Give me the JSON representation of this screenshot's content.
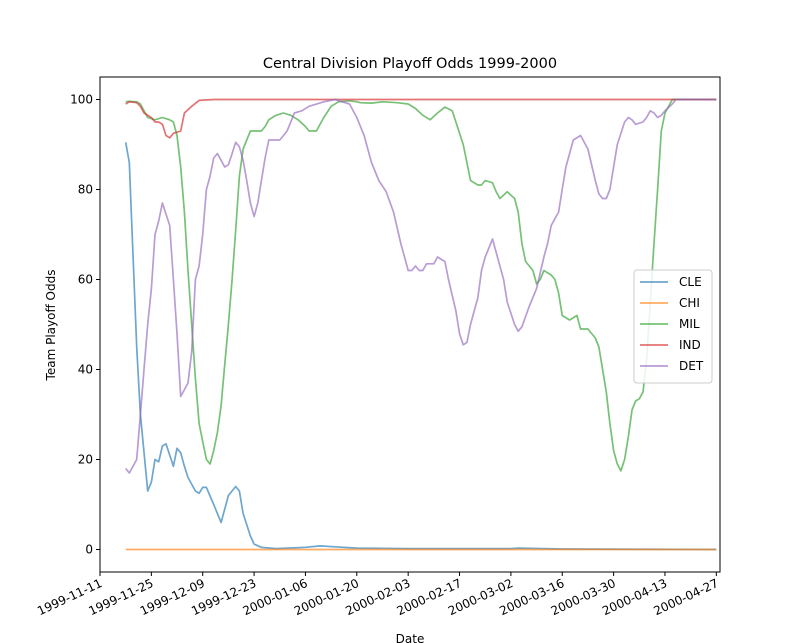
{
  "chart_data": {
    "type": "line",
    "title": "Central Division Playoff Odds 1999-2000",
    "xlabel": "Date",
    "ylabel": "Team Playoff Odds",
    "xlim": [
      "1999-11-11",
      "2000-04-28"
    ],
    "ylim": [
      -5,
      105
    ],
    "x_ticks": [
      "1999-11-11",
      "1999-11-25",
      "1999-12-09",
      "1999-12-23",
      "2000-01-06",
      "2000-01-20",
      "2000-02-03",
      "2000-02-17",
      "2000-03-02",
      "2000-03-16",
      "2000-03-30",
      "2000-04-13",
      "2000-04-27"
    ],
    "y_ticks": [
      0,
      20,
      40,
      60,
      80,
      100
    ],
    "grid": false,
    "legend_position": "center-right",
    "series": [
      {
        "name": "CLE",
        "color": "#1f77b4",
        "points": [
          [
            "1999-11-18",
            90.5
          ],
          [
            "1999-11-19",
            86
          ],
          [
            "1999-11-21",
            45
          ],
          [
            "1999-11-22",
            30
          ],
          [
            "1999-11-24",
            13
          ],
          [
            "1999-11-25",
            15
          ],
          [
            "1999-11-26",
            20
          ],
          [
            "1999-11-27",
            19.5
          ],
          [
            "1999-11-28",
            23
          ],
          [
            "1999-11-29",
            23.5
          ],
          [
            "1999-12-01",
            18.5
          ],
          [
            "1999-12-02",
            22.5
          ],
          [
            "1999-12-03",
            21.5
          ],
          [
            "1999-12-04",
            18.5
          ],
          [
            "1999-12-05",
            16
          ],
          [
            "1999-12-07",
            13
          ],
          [
            "1999-12-08",
            12.5
          ],
          [
            "1999-12-09",
            13.8
          ],
          [
            "1999-12-10",
            13.8
          ],
          [
            "1999-12-12",
            10
          ],
          [
            "1999-12-14",
            6
          ],
          [
            "1999-12-16",
            12
          ],
          [
            "1999-12-18",
            14
          ],
          [
            "1999-12-19",
            13
          ],
          [
            "1999-12-20",
            8
          ],
          [
            "1999-12-22",
            3
          ],
          [
            "1999-12-23",
            1.2
          ],
          [
            "1999-12-25",
            0.5
          ],
          [
            "1999-12-29",
            0.2
          ],
          [
            "2000-01-06",
            0.5
          ],
          [
            "2000-01-10",
            0.8
          ],
          [
            "2000-01-14",
            0.6
          ],
          [
            "2000-01-20",
            0.3
          ],
          [
            "2000-02-03",
            0.2
          ],
          [
            "2000-03-02",
            0.2
          ],
          [
            "2000-03-04",
            0.3
          ],
          [
            "2000-03-16",
            0.1
          ],
          [
            "2000-04-27",
            0
          ]
        ]
      },
      {
        "name": "CHI",
        "color": "#ff7f0e",
        "points": [
          [
            "1999-11-18",
            0
          ],
          [
            "2000-04-27",
            0
          ]
        ]
      },
      {
        "name": "MIL",
        "color": "#2ca02c",
        "points": [
          [
            "1999-11-18",
            99.5
          ],
          [
            "1999-11-19",
            99.6
          ],
          [
            "1999-11-21",
            99.5
          ],
          [
            "1999-11-22",
            99
          ],
          [
            "1999-11-24",
            96
          ],
          [
            "1999-11-26",
            95.5
          ],
          [
            "1999-11-28",
            96
          ],
          [
            "1999-11-30",
            95.5
          ],
          [
            "1999-12-01",
            95
          ],
          [
            "1999-12-02",
            92
          ],
          [
            "1999-12-03",
            85
          ],
          [
            "1999-12-04",
            75
          ],
          [
            "1999-12-05",
            62
          ],
          [
            "1999-12-06",
            50
          ],
          [
            "1999-12-07",
            38
          ],
          [
            "1999-12-08",
            28
          ],
          [
            "1999-12-09",
            24
          ],
          [
            "1999-12-10",
            20
          ],
          [
            "1999-12-11",
            19
          ],
          [
            "1999-12-12",
            22
          ],
          [
            "1999-12-13",
            26
          ],
          [
            "1999-12-14",
            32
          ],
          [
            "1999-12-15",
            41
          ],
          [
            "1999-12-16",
            50
          ],
          [
            "1999-12-17",
            60
          ],
          [
            "1999-12-18",
            71
          ],
          [
            "1999-12-19",
            83
          ],
          [
            "1999-12-20",
            89
          ],
          [
            "1999-12-21",
            91
          ],
          [
            "1999-12-22",
            93
          ],
          [
            "1999-12-25",
            93
          ],
          [
            "1999-12-26",
            94
          ],
          [
            "1999-12-27",
            95.5
          ],
          [
            "1999-12-28",
            96
          ],
          [
            "1999-12-29",
            96.5
          ],
          [
            "1999-12-31",
            97
          ],
          [
            "2000-01-02",
            96.5
          ],
          [
            "2000-01-04",
            95.5
          ],
          [
            "2000-01-06",
            94
          ],
          [
            "2000-01-07",
            93
          ],
          [
            "2000-01-09",
            93
          ],
          [
            "2000-01-11",
            96
          ],
          [
            "2000-01-13",
            98.5
          ],
          [
            "2000-01-15",
            99.5
          ],
          [
            "2000-01-18",
            99.7
          ],
          [
            "2000-01-20",
            99.5
          ],
          [
            "2000-01-21",
            99.3
          ],
          [
            "2000-01-24",
            99.2
          ],
          [
            "2000-01-27",
            99.5
          ],
          [
            "2000-01-31",
            99.3
          ],
          [
            "2000-02-03",
            99
          ],
          [
            "2000-02-05",
            98
          ],
          [
            "2000-02-07",
            96.5
          ],
          [
            "2000-02-09",
            95.5
          ],
          [
            "2000-02-11",
            97
          ],
          [
            "2000-02-13",
            98.3
          ],
          [
            "2000-02-15",
            97.5
          ],
          [
            "2000-02-16",
            95
          ],
          [
            "2000-02-18",
            90
          ],
          [
            "2000-02-19",
            86
          ],
          [
            "2000-02-20",
            82
          ],
          [
            "2000-02-21",
            81.5
          ],
          [
            "2000-02-22",
            81
          ],
          [
            "2000-02-23",
            81
          ],
          [
            "2000-02-24",
            82
          ],
          [
            "2000-02-26",
            81.5
          ],
          [
            "2000-02-27",
            79.5
          ],
          [
            "2000-02-28",
            78
          ],
          [
            "2000-03-01",
            79.5
          ],
          [
            "2000-03-03",
            78
          ],
          [
            "2000-03-04",
            75
          ],
          [
            "2000-03-05",
            68
          ],
          [
            "2000-03-06",
            64
          ],
          [
            "2000-03-08",
            62
          ],
          [
            "2000-03-09",
            59
          ],
          [
            "2000-03-10",
            60
          ],
          [
            "2000-03-11",
            62
          ],
          [
            "2000-03-12",
            61.5
          ],
          [
            "2000-03-13",
            61
          ],
          [
            "2000-03-14",
            60
          ],
          [
            "2000-03-15",
            57
          ],
          [
            "2000-03-16",
            52
          ],
          [
            "2000-03-18",
            51
          ],
          [
            "2000-03-20",
            52
          ],
          [
            "2000-03-21",
            49
          ],
          [
            "2000-03-23",
            49
          ],
          [
            "2000-03-24",
            48
          ],
          [
            "2000-03-25",
            47
          ],
          [
            "2000-03-26",
            45
          ],
          [
            "2000-03-27",
            40
          ],
          [
            "2000-03-28",
            35
          ],
          [
            "2000-03-29",
            28
          ],
          [
            "2000-03-30",
            22
          ],
          [
            "2000-03-31",
            19
          ],
          [
            "2000-04-01",
            17.5
          ],
          [
            "2000-04-02",
            20
          ],
          [
            "2000-04-03",
            25
          ],
          [
            "2000-04-04",
            31
          ],
          [
            "2000-04-05",
            33
          ],
          [
            "2000-04-06",
            33.5
          ],
          [
            "2000-04-07",
            35
          ],
          [
            "2000-04-08",
            42
          ],
          [
            "2000-04-09",
            55
          ],
          [
            "2000-04-10",
            68
          ],
          [
            "2000-04-11",
            80
          ],
          [
            "2000-04-12",
            93
          ],
          [
            "2000-04-13",
            97
          ],
          [
            "2000-04-15",
            100
          ],
          [
            "2000-04-27",
            100
          ]
        ]
      },
      {
        "name": "IND",
        "color": "#d62728",
        "points": [
          [
            "1999-11-18",
            99
          ],
          [
            "1999-11-19",
            99.5
          ],
          [
            "1999-11-21",
            99.3
          ],
          [
            "1999-11-22",
            98.5
          ],
          [
            "1999-11-23",
            97
          ],
          [
            "1999-11-25",
            96
          ],
          [
            "1999-11-26",
            95
          ],
          [
            "1999-11-27",
            95
          ],
          [
            "1999-11-28",
            94.5
          ],
          [
            "1999-11-29",
            92
          ],
          [
            "1999-11-30",
            91.5
          ],
          [
            "1999-12-01",
            92.5
          ],
          [
            "1999-12-03",
            93
          ],
          [
            "1999-12-04",
            97
          ],
          [
            "1999-12-06",
            98.5
          ],
          [
            "1999-12-08",
            99.8
          ],
          [
            "1999-12-12",
            100
          ],
          [
            "2000-04-27",
            100
          ]
        ]
      },
      {
        "name": "DET",
        "color": "#9467bd",
        "points": [
          [
            "1999-11-18",
            18
          ],
          [
            "1999-11-19",
            17
          ],
          [
            "1999-11-21",
            20
          ],
          [
            "1999-11-22",
            30
          ],
          [
            "1999-11-23",
            40
          ],
          [
            "1999-11-24",
            50
          ],
          [
            "1999-11-25",
            58
          ],
          [
            "1999-11-26",
            70
          ],
          [
            "1999-11-27",
            73
          ],
          [
            "1999-11-28",
            77
          ],
          [
            "1999-11-30",
            72
          ],
          [
            "1999-12-01",
            60
          ],
          [
            "1999-12-02",
            48
          ],
          [
            "1999-12-03",
            34
          ],
          [
            "1999-12-05",
            37
          ],
          [
            "1999-12-06",
            44
          ],
          [
            "1999-12-07",
            60
          ],
          [
            "1999-12-08",
            63
          ],
          [
            "1999-12-09",
            70
          ],
          [
            "1999-12-10",
            80
          ],
          [
            "1999-12-11",
            83
          ],
          [
            "1999-12-12",
            87
          ],
          [
            "1999-12-13",
            88
          ],
          [
            "1999-12-14",
            86.5
          ],
          [
            "1999-12-15",
            85
          ],
          [
            "1999-12-16",
            85.5
          ],
          [
            "1999-12-17",
            88
          ],
          [
            "1999-12-18",
            90.5
          ],
          [
            "1999-12-19",
            89.5
          ],
          [
            "1999-12-20",
            86.5
          ],
          [
            "1999-12-21",
            82
          ],
          [
            "1999-12-22",
            77
          ],
          [
            "1999-12-23",
            74
          ],
          [
            "1999-12-24",
            77
          ],
          [
            "1999-12-25",
            82
          ],
          [
            "1999-12-26",
            87
          ],
          [
            "1999-12-27",
            91
          ],
          [
            "1999-12-30",
            91
          ],
          [
            "2000-01-01",
            93
          ],
          [
            "2000-01-03",
            97
          ],
          [
            "2000-01-05",
            97.5
          ],
          [
            "2000-01-07",
            98.5
          ],
          [
            "2000-01-11",
            99.5
          ],
          [
            "2000-01-14",
            100
          ],
          [
            "2000-01-18",
            99
          ],
          [
            "2000-01-20",
            96
          ],
          [
            "2000-01-22",
            92
          ],
          [
            "2000-01-24",
            86
          ],
          [
            "2000-01-26",
            82
          ],
          [
            "2000-01-28",
            79.5
          ],
          [
            "2000-01-30",
            75
          ],
          [
            "2000-02-01",
            68
          ],
          [
            "2000-02-03",
            62
          ],
          [
            "2000-02-04",
            62
          ],
          [
            "2000-02-05",
            63
          ],
          [
            "2000-02-06",
            62
          ],
          [
            "2000-02-07",
            62
          ],
          [
            "2000-02-08",
            63.5
          ],
          [
            "2000-02-10",
            63.5
          ],
          [
            "2000-02-11",
            65
          ],
          [
            "2000-02-13",
            64
          ],
          [
            "2000-02-14",
            60
          ],
          [
            "2000-02-16",
            53
          ],
          [
            "2000-02-17",
            48
          ],
          [
            "2000-02-18",
            45.5
          ],
          [
            "2000-02-19",
            46
          ],
          [
            "2000-02-20",
            50
          ],
          [
            "2000-02-22",
            56
          ],
          [
            "2000-02-23",
            62
          ],
          [
            "2000-02-24",
            65
          ],
          [
            "2000-02-25",
            67
          ],
          [
            "2000-02-26",
            69
          ],
          [
            "2000-02-27",
            66
          ],
          [
            "2000-02-29",
            60
          ],
          [
            "2000-03-01",
            55
          ],
          [
            "2000-03-03",
            50
          ],
          [
            "2000-03-04",
            48.5
          ],
          [
            "2000-03-05",
            49.5
          ],
          [
            "2000-03-07",
            54
          ],
          [
            "2000-03-09",
            58
          ],
          [
            "2000-03-11",
            65
          ],
          [
            "2000-03-12",
            68
          ],
          [
            "2000-03-13",
            72
          ],
          [
            "2000-03-15",
            75
          ],
          [
            "2000-03-16",
            80
          ],
          [
            "2000-03-17",
            85
          ],
          [
            "2000-03-19",
            91
          ],
          [
            "2000-03-21",
            92
          ],
          [
            "2000-03-23",
            89
          ],
          [
            "2000-03-25",
            82
          ],
          [
            "2000-03-26",
            79
          ],
          [
            "2000-03-27",
            78
          ],
          [
            "2000-03-28",
            78
          ],
          [
            "2000-03-29",
            80
          ],
          [
            "2000-03-30",
            85
          ],
          [
            "2000-03-31",
            90
          ],
          [
            "2000-04-02",
            95
          ],
          [
            "2000-04-03",
            96
          ],
          [
            "2000-04-04",
            95.5
          ],
          [
            "2000-04-05",
            94.5
          ],
          [
            "2000-04-07",
            95
          ],
          [
            "2000-04-08",
            96
          ],
          [
            "2000-04-09",
            97.5
          ],
          [
            "2000-04-10",
            97
          ],
          [
            "2000-04-11",
            96
          ],
          [
            "2000-04-12",
            96.5
          ],
          [
            "2000-04-13",
            97.5
          ],
          [
            "2000-04-15",
            99
          ],
          [
            "2000-04-16",
            100
          ],
          [
            "2000-04-27",
            100
          ]
        ]
      }
    ]
  }
}
